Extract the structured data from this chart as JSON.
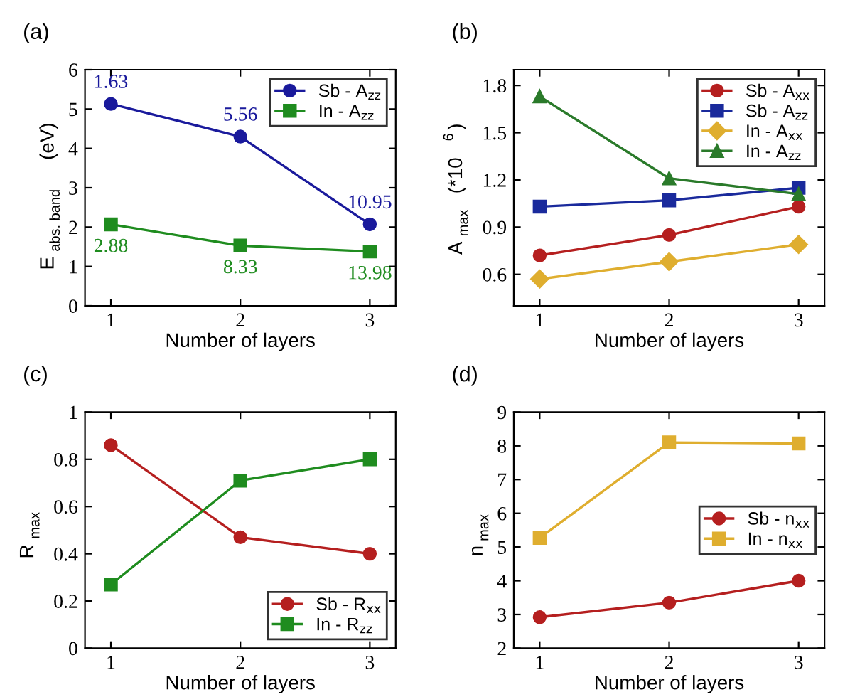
{
  "chart_data": [
    {
      "type": "line",
      "title": "(a)",
      "xlabel": "Number of layers",
      "ylabel": "E$_{abs. band}$ (eV)",
      "x": [
        1,
        2,
        3
      ],
      "xlim": [
        0.8,
        3.2
      ],
      "xticks": [
        1,
        2,
        3
      ],
      "ylim": [
        0,
        6
      ],
      "yticks": [
        0,
        1,
        2,
        3,
        4,
        5,
        6
      ],
      "legend": "top right",
      "grid": false,
      "series": [
        {
          "name": "Sb - A$_{zz}$",
          "color": "#1a1a9c",
          "marker": "circle",
          "values": [
            5.13,
            4.3,
            2.07
          ]
        },
        {
          "name": "In - A$_{zz}$",
          "color": "#1f8c1f",
          "marker": "square",
          "values": [
            2.07,
            1.53,
            1.38
          ]
        }
      ],
      "annotations": [
        {
          "text": "1.63",
          "x": 1,
          "y": 5.13
        },
        {
          "text": "5.56",
          "x": 2,
          "y": 4.3
        },
        {
          "text": "10.95",
          "x": 3,
          "y": 2.07
        },
        {
          "text": "2.88",
          "x": 1,
          "y": 2.07
        },
        {
          "text": "8.33",
          "x": 2,
          "y": 1.53
        },
        {
          "text": "13.98",
          "x": 3,
          "y": 1.38
        }
      ]
    },
    {
      "type": "line",
      "title": "(b)",
      "xlabel": "Number of layers",
      "ylabel": "A$_{max}$ (*10$^{6}$)",
      "x": [
        1,
        2,
        3
      ],
      "xlim": [
        0.8,
        3.2
      ],
      "xticks": [
        1,
        2,
        3
      ],
      "ylim": [
        0.4,
        1.9
      ],
      "yticks": [
        0.6,
        0.9,
        1.2,
        1.5,
        1.8
      ],
      "legend": "top right",
      "grid": false,
      "series": [
        {
          "name": "Sb - A$_{xx}$",
          "color": "#b51f1f",
          "marker": "circle",
          "values": [
            0.72,
            0.85,
            1.03
          ]
        },
        {
          "name": "Sb - A$_{zz}$",
          "color": "#1a2a9c",
          "marker": "square",
          "values": [
            1.03,
            1.07,
            1.15
          ]
        },
        {
          "name": "In - A$_{xx}$",
          "color": "#dfae2f",
          "marker": "diamond",
          "values": [
            0.57,
            0.68,
            0.79
          ]
        },
        {
          "name": "In - A$_{zz}$",
          "color": "#2a7a2a",
          "marker": "triangle",
          "values": [
            1.73,
            1.21,
            1.11
          ]
        }
      ]
    },
    {
      "type": "line",
      "title": "(c)",
      "xlabel": "Number of layers",
      "ylabel": "R$_{max}$",
      "x": [
        1,
        2,
        3
      ],
      "xlim": [
        0.8,
        3.2
      ],
      "xticks": [
        1,
        2,
        3
      ],
      "ylim": [
        0,
        1
      ],
      "yticks": [
        0,
        0.2,
        0.4,
        0.6,
        0.8,
        1
      ],
      "legend": "bottom right",
      "grid": false,
      "series": [
        {
          "name": "Sb - R$_{xx}$",
          "color": "#b51f1f",
          "marker": "circle",
          "values": [
            0.86,
            0.47,
            0.4
          ]
        },
        {
          "name": "In - R$_{zz}$",
          "color": "#1f8c1f",
          "marker": "square",
          "values": [
            0.27,
            0.71,
            0.8
          ]
        }
      ]
    },
    {
      "type": "line",
      "title": "(d)",
      "xlabel": "Number of layers",
      "ylabel": "n$_{max}$",
      "x": [
        1,
        2,
        3
      ],
      "xlim": [
        0.8,
        3.2
      ],
      "xticks": [
        1,
        2,
        3
      ],
      "ylim": [
        2,
        9
      ],
      "yticks": [
        2,
        3,
        4,
        5,
        6,
        7,
        8,
        9
      ],
      "legend": "center right",
      "grid": false,
      "series": [
        {
          "name": "Sb - n$_{xx}$",
          "color": "#b51f1f",
          "marker": "circle",
          "values": [
            2.92,
            3.35,
            4.0
          ]
        },
        {
          "name": "In - n$_{xx}$",
          "color": "#dfae2f",
          "marker": "square",
          "values": [
            5.27,
            8.1,
            8.07
          ]
        }
      ]
    }
  ]
}
